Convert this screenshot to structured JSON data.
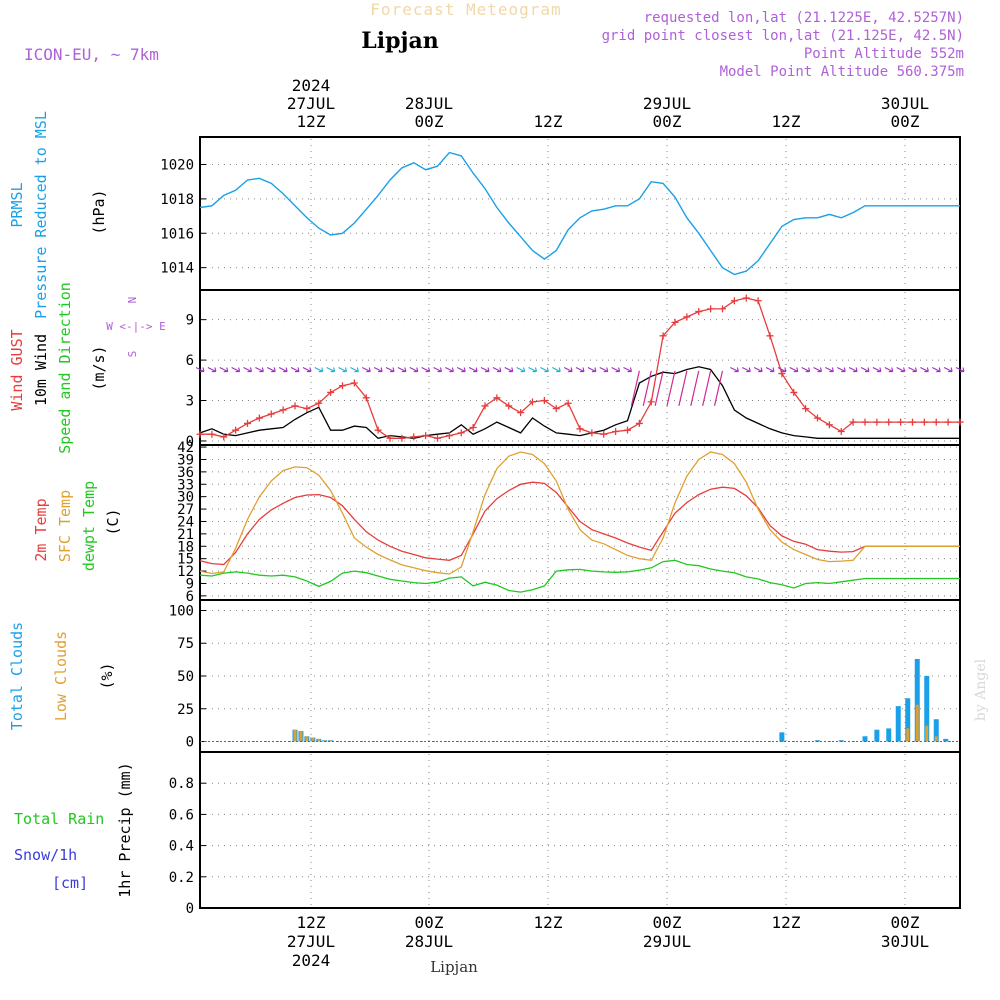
{
  "header": {
    "title": "Forecast Meteogram",
    "location": "Lipjan",
    "model": "ICON-EU, ~ 7km",
    "requested": "requested lon,lat (21.1225E, 42.5257N)",
    "gridpoint": "grid point closest lon,lat (21.125E, 42.5N)",
    "point_alt": "Point Altitude 552m",
    "model_alt": "Model Point Altitude 560.375m",
    "footer_location": "Lipjan",
    "credit": "by Angel"
  },
  "colors": {
    "pressure": "#1aa0e8",
    "gust": "#e83c3c",
    "wind": "#000000",
    "temp2m": "#e83c3c",
    "sfc": "#e0a030",
    "dewpt": "#22c822",
    "total_cloud": "#1aa0e8",
    "low_cloud": "#e0a030",
    "rain": "#22c822",
    "snow": "#3c3cdc",
    "label_purple": "#b060d8"
  },
  "time_axis": {
    "top": [
      {
        "hour": "12Z",
        "date": "27JUL",
        "year": "2024"
      },
      {
        "hour": "00Z",
        "date": "28JUL",
        "year": ""
      },
      {
        "hour": "12Z",
        "date": "",
        "year": ""
      },
      {
        "hour": "00Z",
        "date": "29JUL",
        "year": ""
      },
      {
        "hour": "12Z",
        "date": "",
        "year": ""
      },
      {
        "hour": "00Z",
        "date": "30JUL",
        "year": ""
      }
    ],
    "bottom": [
      {
        "hour": "12Z",
        "date": "27JUL",
        "year": "2024"
      },
      {
        "hour": "00Z",
        "date": "28JUL",
        "year": ""
      },
      {
        "hour": "12Z",
        "date": "",
        "year": ""
      },
      {
        "hour": "00Z",
        "date": "29JUL",
        "year": ""
      },
      {
        "hour": "12Z",
        "date": "",
        "year": ""
      },
      {
        "hour": "00Z",
        "date": "30JUL",
        "year": ""
      }
    ]
  },
  "chart_data": [
    {
      "type": "line",
      "panel": "pressure",
      "ylabel_lines": [
        "PRMSL",
        "Pressure Reduced to MSL"
      ],
      "unit": "(hPa)",
      "ylim": [
        1012.7,
        1021.6
      ],
      "yticks": [
        1014,
        1016,
        1018,
        1020
      ],
      "xlim": [
        3,
        67
      ],
      "series": [
        {
          "x": [
            3,
            4,
            5,
            6,
            7,
            8,
            9,
            10,
            11,
            12,
            13,
            14,
            15,
            16,
            17,
            18,
            19,
            20,
            21,
            22,
            23,
            24,
            25,
            26,
            27,
            28,
            29,
            30,
            31,
            32,
            33,
            34,
            35,
            36,
            37,
            38,
            39,
            40,
            41,
            42,
            43,
            44,
            45,
            46,
            47,
            48,
            49,
            50,
            51,
            52,
            53,
            54,
            55,
            56,
            57,
            58,
            59,
            60,
            61,
            62,
            63,
            64,
            65,
            66,
            67
          ],
          "values": [
            1017.5,
            1017.6,
            1018.2,
            1018.5,
            1019.1,
            1019.2,
            1018.9,
            1018.3,
            1017.6,
            1016.9,
            1016.3,
            1015.9,
            1016.0,
            1016.6,
            1017.4,
            1018.2,
            1019.1,
            1019.8,
            1020.1,
            1019.7,
            1019.9,
            1020.7,
            1020.5,
            1019.5,
            1018.6,
            1017.5,
            1016.6,
            1015.8,
            1015.0,
            1014.5,
            1015.0,
            1016.2,
            1016.9,
            1017.3,
            1017.4,
            1017.6,
            1017.6,
            1018.0,
            1019.0,
            1018.9,
            1018.1,
            1016.9,
            1016.0,
            1015.0,
            1014.0,
            1013.6,
            1013.8,
            1014.4,
            1015.4,
            1016.4,
            1016.8,
            1016.9,
            1016.9,
            1017.1,
            1016.9,
            1017.2,
            1017.6,
            1017.6,
            1017.6,
            1017.6,
            1017.6,
            1017.6,
            1017.6,
            1017.6,
            1017.6
          ]
        }
      ]
    },
    {
      "type": "line",
      "panel": "wind",
      "ylabel_lines": [
        "Wind GUST",
        "10m Wind",
        "Speed and Direction"
      ],
      "unit": "(m/s)",
      "compass": [
        "N",
        "W <-|-> E",
        "S"
      ],
      "ylim": [
        -0.3,
        11.2
      ],
      "yticks": [
        0,
        3,
        6,
        9
      ],
      "xlim": [
        3,
        67
      ],
      "series": [
        {
          "name": "Wind GUST",
          "x": [
            3,
            4,
            5,
            6,
            7,
            8,
            9,
            10,
            11,
            12,
            13,
            14,
            15,
            16,
            17,
            18,
            19,
            20,
            21,
            22,
            23,
            24,
            25,
            26,
            27,
            28,
            29,
            30,
            31,
            32,
            33,
            34,
            35,
            36,
            37,
            38,
            39,
            40,
            41,
            42,
            43,
            44,
            45,
            46,
            47,
            48,
            49,
            50,
            51,
            52,
            53,
            54,
            55,
            56,
            57,
            58,
            59,
            60,
            61,
            62,
            63,
            64,
            65,
            66,
            67
          ],
          "values": [
            0.5,
            0.5,
            0.3,
            0.8,
            1.3,
            1.7,
            2.0,
            2.3,
            2.6,
            2.4,
            2.8,
            3.6,
            4.1,
            4.3,
            3.2,
            0.8,
            0.2,
            0.2,
            0.3,
            0.4,
            0.2,
            0.4,
            0.6,
            1.0,
            2.6,
            3.2,
            2.6,
            2.1,
            2.9,
            3.0,
            2.4,
            2.8,
            0.9,
            0.6,
            0.5,
            0.7,
            0.8,
            1.3,
            2.9,
            7.8,
            8.8,
            9.2,
            9.6,
            9.8,
            9.8,
            10.4,
            10.6,
            10.4,
            7.8,
            5.0,
            3.6,
            2.4,
            1.7,
            1.2,
            0.7,
            1.4,
            1.4,
            1.4,
            1.4,
            1.4,
            1.4,
            1.4,
            1.4,
            1.4,
            1.4
          ]
        },
        {
          "name": "10m Wind",
          "x": [
            3,
            4,
            5,
            6,
            7,
            8,
            9,
            10,
            11,
            12,
            13,
            14,
            15,
            16,
            17,
            18,
            19,
            20,
            21,
            22,
            23,
            24,
            25,
            26,
            27,
            28,
            29,
            30,
            31,
            32,
            33,
            34,
            35,
            36,
            37,
            38,
            39,
            40,
            41,
            42,
            43,
            44,
            45,
            46,
            47,
            48,
            49,
            50,
            51,
            52,
            53,
            54,
            55,
            56,
            57,
            58,
            59,
            60,
            61,
            62,
            63,
            64,
            65,
            66,
            67
          ],
          "values": [
            0.6,
            0.9,
            0.5,
            0.4,
            0.6,
            0.8,
            0.9,
            1.0,
            1.6,
            2.1,
            2.5,
            0.8,
            0.8,
            1.1,
            1.0,
            0.2,
            0.4,
            0.3,
            0.2,
            0.4,
            0.5,
            0.6,
            1.2,
            0.5,
            0.9,
            1.4,
            1.0,
            0.6,
            1.7,
            1.1,
            0.6,
            0.5,
            0.4,
            0.6,
            0.8,
            1.2,
            1.5,
            4.3,
            4.8,
            5.1,
            5.0,
            5.3,
            5.5,
            5.3,
            4.1,
            2.3,
            1.7,
            1.3,
            0.9,
            0.6,
            0.4,
            0.3,
            0.2,
            0.2,
            0.2,
            0.2,
            0.2,
            0.2,
            0.2,
            0.2,
            0.2,
            0.2,
            0.2,
            0.2,
            0.2
          ]
        }
      ]
    },
    {
      "type": "line",
      "panel": "temperature",
      "ylabel_lines": [
        "2m Temp",
        "SFC Temp",
        "dewpt Temp"
      ],
      "unit": "(C)",
      "ylim": [
        5,
        42.5
      ],
      "yticks": [
        6,
        9,
        12,
        15,
        18,
        21,
        24,
        27,
        30,
        33,
        36,
        39,
        42
      ],
      "xlim": [
        3,
        67
      ],
      "series": [
        {
          "name": "2m Temp",
          "x": [
            3,
            4,
            5,
            6,
            7,
            8,
            9,
            10,
            11,
            12,
            13,
            14,
            15,
            16,
            17,
            18,
            19,
            20,
            21,
            22,
            23,
            24,
            25,
            26,
            27,
            28,
            29,
            30,
            31,
            32,
            33,
            34,
            35,
            36,
            37,
            38,
            39,
            40,
            41,
            42,
            43,
            44,
            45,
            46,
            47,
            48,
            49,
            50,
            51,
            52,
            53,
            54,
            55,
            56,
            57,
            58,
            59,
            60,
            61,
            62,
            63,
            64,
            65,
            66,
            67
          ],
          "values": [
            14.5,
            13.8,
            13.6,
            16.5,
            21.0,
            24.5,
            26.8,
            28.4,
            29.8,
            30.4,
            30.5,
            29.8,
            27.8,
            24.5,
            21.5,
            19.5,
            18.0,
            16.8,
            16.0,
            15.2,
            14.9,
            14.6,
            15.8,
            21.0,
            26.5,
            29.5,
            31.5,
            33.0,
            33.5,
            33.2,
            31.0,
            27.5,
            24.0,
            22.0,
            21.0,
            20.0,
            18.8,
            17.8,
            17.0,
            21.5,
            26.0,
            28.6,
            30.5,
            31.8,
            32.3,
            32.0,
            30.2,
            27.3,
            23.0,
            20.5,
            19.2,
            18.5,
            17.2,
            16.8,
            16.6,
            16.7,
            18.0,
            18.0,
            18.0,
            18.0,
            18.0,
            18.0,
            18.0,
            18.0,
            18.0
          ]
        },
        {
          "name": "SFC Temp",
          "x": [
            3,
            4,
            5,
            6,
            7,
            8,
            9,
            10,
            11,
            12,
            13,
            14,
            15,
            16,
            17,
            18,
            19,
            20,
            21,
            22,
            23,
            24,
            25,
            26,
            27,
            28,
            29,
            30,
            31,
            32,
            33,
            34,
            35,
            36,
            37,
            38,
            39,
            40,
            41,
            42,
            43,
            44,
            45,
            46,
            47,
            48,
            49,
            50,
            51,
            52,
            53,
            54,
            55,
            56,
            57,
            58,
            59,
            60,
            61,
            62,
            63,
            64,
            65,
            66,
            67
          ],
          "values": [
            12.0,
            11.4,
            11.8,
            17.5,
            24.5,
            30.0,
            33.8,
            36.3,
            37.2,
            37.0,
            35.2,
            31.5,
            26.0,
            20.0,
            17.8,
            16.0,
            14.7,
            13.5,
            12.8,
            12.1,
            11.6,
            11.3,
            13.0,
            21.5,
            30.5,
            36.8,
            39.8,
            40.8,
            40.2,
            38.0,
            33.8,
            27.0,
            22.0,
            19.5,
            18.6,
            17.2,
            15.8,
            15.0,
            14.6,
            20.0,
            28.5,
            35.0,
            39.0,
            40.8,
            40.2,
            38.0,
            33.5,
            27.0,
            22.0,
            19.0,
            17.2,
            16.0,
            14.8,
            14.3,
            14.4,
            14.6,
            18.0,
            18.0,
            18.0,
            18.0,
            18.0,
            18.0,
            18.0,
            18.0,
            18.0
          ]
        },
        {
          "name": "dewpt Temp",
          "x": [
            3,
            4,
            5,
            6,
            7,
            8,
            9,
            10,
            11,
            12,
            13,
            14,
            15,
            16,
            17,
            18,
            19,
            20,
            21,
            22,
            23,
            24,
            25,
            26,
            27,
            28,
            29,
            30,
            31,
            32,
            33,
            34,
            35,
            36,
            37,
            38,
            39,
            40,
            41,
            42,
            43,
            44,
            45,
            46,
            47,
            48,
            49,
            50,
            51,
            52,
            53,
            54,
            55,
            56,
            57,
            58,
            59,
            60,
            61,
            62,
            63,
            64,
            65,
            66,
            67
          ],
          "values": [
            11.0,
            10.8,
            11.5,
            11.8,
            11.5,
            11.0,
            10.8,
            11.0,
            10.6,
            9.6,
            8.3,
            9.5,
            11.5,
            12.0,
            11.6,
            10.8,
            10.0,
            9.6,
            9.2,
            9.0,
            9.3,
            10.3,
            10.6,
            8.4,
            9.3,
            8.6,
            7.3,
            6.9,
            7.5,
            8.4,
            12.0,
            12.3,
            12.4,
            12.0,
            11.8,
            11.7,
            11.8,
            12.2,
            12.8,
            14.3,
            14.6,
            13.6,
            13.3,
            12.5,
            12.0,
            11.6,
            10.6,
            10.1,
            9.2,
            8.7,
            7.9,
            9.0,
            9.2,
            9.0,
            9.4,
            9.8,
            10.2,
            10.2,
            10.2,
            10.2,
            10.2,
            10.2,
            10.2,
            10.2,
            10.2
          ]
        }
      ]
    },
    {
      "type": "bar",
      "panel": "clouds",
      "ylabel_lines": [
        "Total Clouds",
        "Low Clouds"
      ],
      "unit": "(%)",
      "ylim": [
        -8,
        108
      ],
      "yticks": [
        0,
        25,
        50,
        75,
        100
      ],
      "xlim": [
        3,
        67
      ],
      "series": [
        {
          "name": "Total Clouds",
          "x": [
            11.0,
            11.5,
            12.0,
            12.5,
            13.0,
            13.5,
            14.0,
            52.0,
            55.0,
            57.0,
            59.0,
            60.0,
            61.0,
            61.8,
            62.6,
            63.4,
            64.2,
            65.0,
            65.8
          ],
          "values": [
            9,
            8,
            4,
            3,
            2,
            1,
            1,
            7,
            1,
            1,
            4,
            9,
            10,
            27,
            33,
            63,
            50,
            17,
            2
          ]
        },
        {
          "name": "Low Clouds",
          "x": [
            11.0,
            11.5,
            12.0,
            12.5,
            13.0,
            13.5,
            14.0,
            62.6,
            63.4,
            64.2,
            65.0
          ],
          "values": [
            9,
            8,
            4,
            3,
            2,
            1,
            1,
            10,
            28,
            12,
            4
          ]
        }
      ]
    },
    {
      "type": "bar",
      "panel": "precip",
      "ylabel_lines": [
        "1hr Precip (mm)"
      ],
      "legend_left": [
        "Total Rain",
        "Snow/1h",
        "[cm]"
      ],
      "ylim": [
        0,
        1.0
      ],
      "yticks": [
        0,
        0.2,
        0.4,
        0.6,
        0.8
      ],
      "xlim": [
        3,
        67
      ],
      "series": [
        {
          "name": "Total Rain",
          "x": [],
          "values": []
        },
        {
          "name": "Snow/1h",
          "x": [],
          "values": []
        }
      ]
    }
  ]
}
